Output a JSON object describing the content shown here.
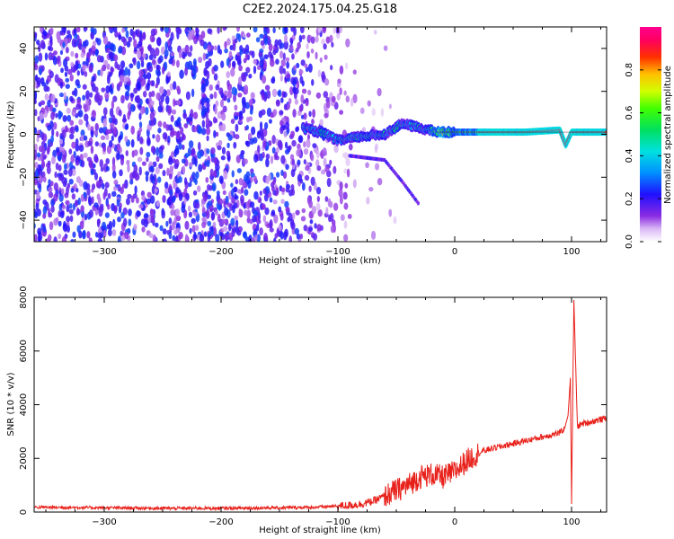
{
  "title": "C2E2.2024.175.04.25.G18",
  "chart_data": [
    {
      "type": "heatmap",
      "xlabel": "Height of straight line (km)",
      "ylabel": "Frequency (Hz)",
      "xlim": [
        -360,
        130
      ],
      "ylim": [
        -50,
        50
      ],
      "xticks": [
        -300,
        -200,
        -100,
        0,
        100
      ],
      "yticks": [
        -40,
        -20,
        0,
        20,
        40
      ],
      "grid": false,
      "colorbar": {
        "label": "Normalized spectral amplitude",
        "range": [
          0.0,
          1.0
        ],
        "ticks": [
          0.0,
          0.2,
          0.4,
          0.6,
          0.8
        ],
        "colormap": "rainbow"
      },
      "features": {
        "noise_region_x": [
          -360,
          -90
        ],
        "main_tone_path": [
          {
            "x": -130,
            "y": 3
          },
          {
            "x": -110,
            "y": 0
          },
          {
            "x": -100,
            "y": -3
          },
          {
            "x": -80,
            "y": -1
          },
          {
            "x": -60,
            "y": 0
          },
          {
            "x": -45,
            "y": 5
          },
          {
            "x": -30,
            "y": 3
          },
          {
            "x": -15,
            "y": 1
          },
          {
            "x": 0,
            "y": 1
          },
          {
            "x": 30,
            "y": 1
          },
          {
            "x": 60,
            "y": 1
          },
          {
            "x": 90,
            "y": 2
          },
          {
            "x": 95,
            "y": -5
          },
          {
            "x": 100,
            "y": 1
          },
          {
            "x": 130,
            "y": 1
          }
        ],
        "tail_path": [
          {
            "x": -90,
            "y": -10
          },
          {
            "x": -60,
            "y": -12
          },
          {
            "x": -45,
            "y": -22
          },
          {
            "x": -30,
            "y": -33
          }
        ]
      }
    },
    {
      "type": "line",
      "xlabel": "Height of straight line (km)",
      "ylabel": "SNR (10 * v/v)",
      "xlim": [
        -360,
        130
      ],
      "ylim": [
        0,
        8000
      ],
      "xticks": [
        -300,
        -200,
        -100,
        0,
        100
      ],
      "yticks": [
        0,
        2000,
        4000,
        6000,
        8000
      ],
      "color": "#e8201a",
      "series": [
        {
          "x": [
            -360,
            -300,
            -250,
            -200,
            -150,
            -120,
            -100,
            -90,
            -80,
            -70,
            -60,
            -50,
            -40,
            -30,
            -20,
            -10,
            0,
            10,
            20,
            30,
            40,
            50,
            60,
            70,
            80,
            90,
            94,
            97,
            99,
            100,
            102,
            105,
            110,
            120,
            130
          ],
          "values": [
            180,
            160,
            140,
            140,
            160,
            180,
            220,
            250,
            300,
            400,
            600,
            800,
            1000,
            1300,
            1400,
            1300,
            1500,
            1900,
            2200,
            2350,
            2450,
            2550,
            2650,
            2750,
            2850,
            2950,
            3100,
            3600,
            5000,
            300,
            7900,
            3200,
            3300,
            3400,
            3500
          ]
        }
      ]
    }
  ]
}
